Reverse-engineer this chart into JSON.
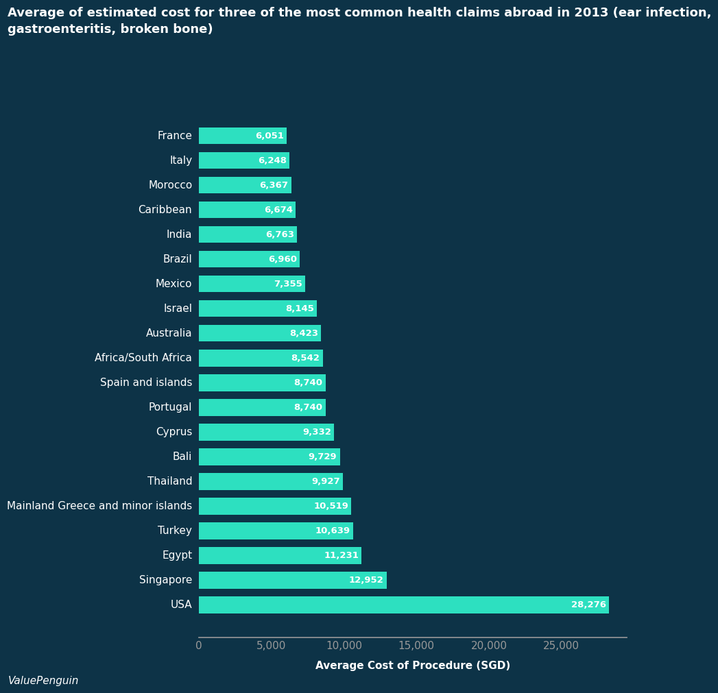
{
  "title_line1": "Average of estimated cost for three of the most common health claims abroad in 2013 (ear infection,",
  "title_line2": "gastroenteritis, broken bone)",
  "xlabel": "Average Cost of Procedure (SGD)",
  "countries": [
    "France",
    "Italy",
    "Morocco",
    "Caribbean",
    "India",
    "Brazil",
    "Mexico",
    "Israel",
    "Australia",
    "Africa/South Africa",
    "Spain and islands",
    "Portugal",
    "Cyprus",
    "Bali",
    "Thailand",
    "Mainland Greece and minor islands",
    "Turkey",
    "Egypt",
    "Singapore",
    "USA"
  ],
  "values": [
    6051,
    6248,
    6367,
    6674,
    6763,
    6960,
    7355,
    8145,
    8423,
    8542,
    8740,
    8740,
    9332,
    9729,
    9927,
    10519,
    10639,
    11231,
    12952,
    28276
  ],
  "bar_color": "#2de0c0",
  "bg_color": "#0d3347",
  "text_color": "#ffffff",
  "label_color": "#ffffff",
  "axis_line_color": "#999999",
  "tick_color": "#999999",
  "watermark": "ValuePenguin",
  "xlim": [
    0,
    29500
  ],
  "xticks": [
    0,
    5000,
    10000,
    15000,
    20000,
    25000
  ],
  "xtick_labels": [
    "0",
    "5,000",
    "10,000",
    "15,000",
    "20,000",
    "25,000"
  ],
  "title_fontsize": 13,
  "label_fontsize": 11,
  "bar_label_fontsize": 9.5,
  "country_fontsize": 11,
  "watermark_fontsize": 11
}
